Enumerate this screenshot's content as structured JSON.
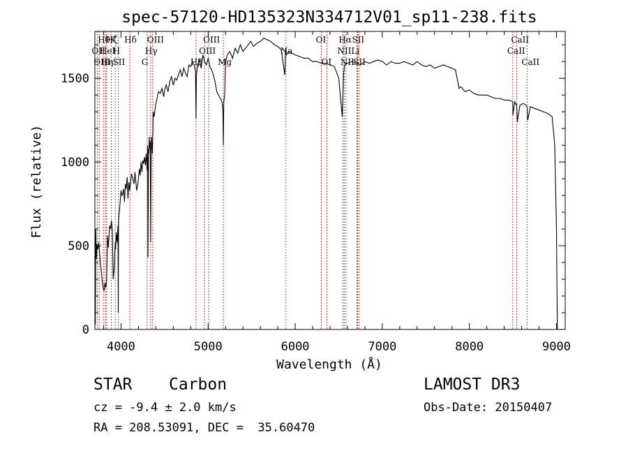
{
  "chart_data": {
    "type": "line",
    "title": "spec-57120-HD135323N334712V01_sp11-238.fits",
    "xlabel": "Wavelength (Å)",
    "ylabel": "Flux (relative)",
    "xlim": [
      3700,
      9100
    ],
    "ylim": [
      0,
      1780
    ],
    "xticks": [
      4000,
      5000,
      6000,
      7000,
      8000,
      9000
    ],
    "yticks": [
      0,
      500,
      1000,
      1500
    ],
    "series": [
      {
        "x": [
          3700,
          3705,
          3710,
          3718,
          3725,
          3735,
          3745,
          3755,
          3765,
          3775,
          3785,
          3795,
          3805,
          3815,
          3825,
          3835,
          3845,
          3855,
          3862,
          3870,
          3880,
          3890,
          3900,
          3910,
          3920,
          3928,
          3933,
          3938,
          3945,
          3955,
          3965,
          3968,
          3972,
          3980,
          3990,
          4000,
          4010,
          4020,
          4030,
          4040,
          4050,
          4060,
          4070,
          4080,
          4090,
          4100,
          4110,
          4120,
          4130,
          4140,
          4150,
          4160,
          4170,
          4180,
          4190,
          4200,
          4210,
          4220,
          4230,
          4240,
          4250,
          4260,
          4270,
          4280,
          4290,
          4300,
          4305,
          4310,
          4315,
          4320,
          4325,
          4330,
          4335,
          4340,
          4345,
          4350,
          4360,
          4370,
          4380,
          4390,
          4400,
          4410,
          4420,
          4430,
          4450,
          4470,
          4490,
          4500,
          4520,
          4540,
          4560,
          4580,
          4600,
          4620,
          4640,
          4660,
          4680,
          4700,
          4720,
          4740,
          4760,
          4780,
          4800,
          4820,
          4840,
          4855,
          4861,
          4866,
          4880,
          4900,
          4920,
          4940,
          4960,
          4980,
          5000,
          5020,
          5040,
          5060,
          5080,
          5100,
          5120,
          5140,
          5160,
          5170,
          5175,
          5180,
          5190,
          5200,
          5220,
          5250,
          5280,
          5310,
          5340,
          5370,
          5400,
          5430,
          5460,
          5490,
          5520,
          5560,
          5600,
          5640,
          5680,
          5720,
          5760,
          5800,
          5840,
          5880,
          5890,
          5896,
          5900,
          5920,
          5960,
          6000,
          6050,
          6100,
          6150,
          6200,
          6250,
          6300,
          6350,
          6400,
          6450,
          6500,
          6540,
          6555,
          6563,
          6570,
          6580,
          6600,
          6650,
          6700,
          6750,
          6800,
          6850,
          6900,
          6950,
          7000,
          7050,
          7100,
          7150,
          7200,
          7250,
          7300,
          7350,
          7400,
          7450,
          7500,
          7550,
          7600,
          7650,
          7700,
          7750,
          7800,
          7840,
          7870,
          7880,
          7900,
          7920,
          7950,
          8000,
          8050,
          8100,
          8150,
          8200,
          8250,
          8300,
          8350,
          8400,
          8450,
          8498,
          8500,
          8520,
          8540,
          8542,
          8550,
          8580,
          8620,
          8650,
          8662,
          8670,
          8700,
          8750,
          8800,
          8850,
          8900,
          8950,
          8980,
          9000,
          9005,
          9010
        ],
        "y": [
          280,
          30,
          600,
          420,
          510,
          480,
          520,
          450,
          390,
          340,
          280,
          250,
          230,
          280,
          250,
          290,
          560,
          490,
          560,
          620,
          600,
          650,
          590,
          300,
          350,
          450,
          520,
          480,
          580,
          520,
          620,
          100,
          650,
          700,
          760,
          830,
          800,
          810,
          840,
          760,
          870,
          840,
          910,
          780,
          880,
          830,
          880,
          930,
          910,
          890,
          870,
          940,
          880,
          830,
          860,
          900,
          960,
          920,
          1000,
          940,
          1010,
          990,
          1030,
          980,
          1050,
          950,
          1100,
          430,
          1080,
          1050,
          1150,
          1080,
          1120,
          520,
          1000,
          1150,
          1050,
          1300,
          1270,
          1310,
          1350,
          1370,
          1400,
          1420,
          1410,
          1440,
          1390,
          1430,
          1460,
          1420,
          1480,
          1510,
          1460,
          1500,
          1490,
          1520,
          1550,
          1510,
          1560,
          1530,
          1510,
          1580,
          1570,
          1600,
          1580,
          1540,
          1260,
          1520,
          1580,
          1610,
          1560,
          1640,
          1600,
          1580,
          1620,
          1570,
          1550,
          1520,
          1480,
          1420,
          1400,
          1380,
          1360,
          1300,
          1100,
          1360,
          1400,
          1600,
          1640,
          1660,
          1620,
          1680,
          1650,
          1700,
          1660,
          1680,
          1700,
          1720,
          1690,
          1710,
          1720,
          1740,
          1730,
          1720,
          1700,
          1690,
          1670,
          1520,
          1680,
          1650,
          1640,
          1660,
          1650,
          1640,
          1630,
          1620,
          1620,
          1600,
          1600,
          1590,
          1590,
          1580,
          1570,
          1500,
          1270,
          1520,
          1560,
          1580,
          1590,
          1590,
          1600,
          1590,
          1580,
          1600,
          1590,
          1600,
          1610,
          1600,
          1580,
          1600,
          1590,
          1590,
          1600,
          1590,
          1580,
          1600,
          1580,
          1570,
          1580,
          1560,
          1570,
          1580,
          1570,
          1560,
          1550,
          1470,
          1440,
          1450,
          1440,
          1420,
          1430,
          1410,
          1400,
          1400,
          1400,
          1390,
          1380,
          1380,
          1370,
          1370,
          1360,
          1280,
          1360,
          1340,
          1350,
          1240,
          1340,
          1350,
          1340,
          1330,
          1250,
          1330,
          1320,
          1310,
          1300,
          1290,
          1270,
          1100,
          600,
          300,
          0
        ]
      }
    ],
    "lines": [
      {
        "x": 3727,
        "labels": [
          "OII"
        ],
        "row": 1
      },
      {
        "x": 3750,
        "labels": [
          "OIII"
        ],
        "row": 2
      },
      {
        "x": 3798,
        "labels": [
          "Hθ"
        ],
        "row": 0
      },
      {
        "x": 3820,
        "labels": [
          "HeI"
        ],
        "row": 1
      },
      {
        "x": 3835,
        "labels": [
          "Hη"
        ],
        "row": 2
      },
      {
        "x": 3889,
        "labels": [
          "Hζ"
        ],
        "row": 0
      },
      {
        "x": 3934,
        "labels": [
          "K"
        ],
        "row": 0
      },
      {
        "x": 3969,
        "labels": [
          "H",
          "SII"
        ],
        "row": 1
      },
      {
        "x": 4102,
        "labels": [
          "Hδ"
        ],
        "row": 0
      },
      {
        "x": 4300,
        "labels": [
          "G"
        ],
        "row": 2
      },
      {
        "x": 4340,
        "labels": [
          "Hγ"
        ],
        "row": 1
      },
      {
        "x": 4363,
        "labels": [
          "OIII"
        ],
        "row": 0
      },
      {
        "x": 4861,
        "labels": [
          "Hβ"
        ],
        "row": 2
      },
      {
        "x": 4959,
        "labels": [
          "OIII"
        ],
        "row": 1
      },
      {
        "x": 5007,
        "labels": [
          "OIII"
        ],
        "row": 0
      },
      {
        "x": 5175,
        "labels": [
          "Mg"
        ],
        "row": 2
      },
      {
        "x": 5893,
        "labels": [
          "Na"
        ],
        "row": 1
      },
      {
        "x": 6300,
        "labels": [
          "OI"
        ],
        "row": 0
      },
      {
        "x": 6364,
        "labels": [
          "OI"
        ],
        "row": 2
      },
      {
        "x": 6548,
        "labels": [
          "NII"
        ],
        "row": 1
      },
      {
        "x": 6563,
        "labels": [
          "Hα"
        ],
        "row": 0
      },
      {
        "x": 6583,
        "labels": [
          "NII"
        ],
        "row": 2
      },
      {
        "x": 6707,
        "labels": [
          "Li"
        ],
        "row": 1
      },
      {
        "x": 6716,
        "labels": [
          "SII"
        ],
        "row": 0
      },
      {
        "x": 6731,
        "labels": [
          "SII"
        ],
        "row": 2
      },
      {
        "x": 8498,
        "labels": [
          "CaII"
        ],
        "row": 1
      },
      {
        "x": 8542,
        "labels": [
          "CaII"
        ],
        "row": 0
      },
      {
        "x": 8662,
        "labels": [
          "CaII"
        ],
        "row": 2
      }
    ]
  },
  "info": {
    "class": "STAR",
    "subclass": "Carbon",
    "survey": "LAMOST DR3",
    "cz": "cz = -9.4 ± 2.0 km/s",
    "obs_date": "Obs-Date: 20150407",
    "coords": "RA = 208.53091, DEC =  35.60470"
  }
}
